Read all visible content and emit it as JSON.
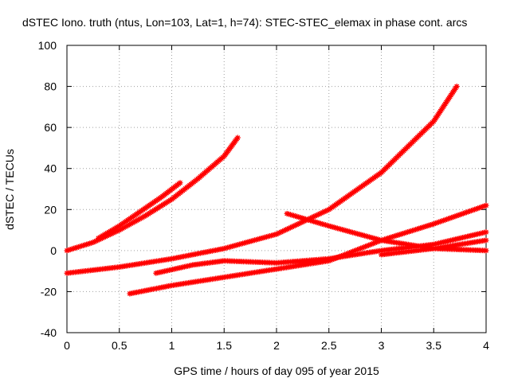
{
  "chart_data": {
    "type": "scatter",
    "title": "dSTEC Iono. truth (ntus, Lon=103, Lat=1, h=74): STEC-STEC_elemax in phase cont. arcs",
    "xlabel": "GPS time / hours of day 095 of year 2015",
    "ylabel": "dSTEC  / TECUs",
    "xlim": [
      0,
      4
    ],
    "ylim": [
      -40,
      100
    ],
    "x_ticks": [
      "0",
      "0.5",
      "1",
      "1.5",
      "2",
      "2.5",
      "3",
      "3.5",
      "4"
    ],
    "y_ticks": [
      "-40",
      "-20",
      "0",
      "20",
      "40",
      "60",
      "80",
      "100"
    ],
    "grid": true,
    "marker": "star",
    "color": "#ff0000",
    "series": [
      {
        "x": [
          0.0,
          0.25,
          0.5,
          0.75,
          1.0,
          1.25,
          1.5,
          1.63
        ],
        "y": [
          0,
          4,
          10,
          17,
          25,
          35,
          46,
          55
        ]
      },
      {
        "x": [
          0.3,
          0.5,
          0.7,
          0.9,
          1.08
        ],
        "y": [
          6,
          12,
          19,
          26,
          33
        ]
      },
      {
        "x": [
          0.0,
          0.5,
          1.0,
          1.5,
          2.0,
          2.5,
          3.0,
          3.5,
          3.72
        ],
        "y": [
          -11,
          -8,
          -4,
          1,
          8,
          20,
          38,
          63,
          80
        ]
      },
      {
        "x": [
          0.6,
          1.0,
          1.5,
          2.0,
          2.5,
          3.0,
          3.5,
          4.0
        ],
        "y": [
          -21,
          -17,
          -13,
          -9,
          -5,
          5,
          13,
          22
        ]
      },
      {
        "x": [
          0.85,
          1.2,
          1.5,
          2.0,
          2.5,
          3.0,
          3.5,
          4.0
        ],
        "y": [
          -11,
          -7,
          -5,
          -6,
          -4,
          0,
          3,
          9
        ]
      },
      {
        "x": [
          2.1,
          2.5,
          3.0,
          3.5,
          4.0
        ],
        "y": [
          18,
          12,
          5,
          1,
          0
        ]
      },
      {
        "x": [
          3.0,
          3.5,
          4.0
        ],
        "y": [
          -2,
          1,
          5
        ]
      }
    ]
  }
}
